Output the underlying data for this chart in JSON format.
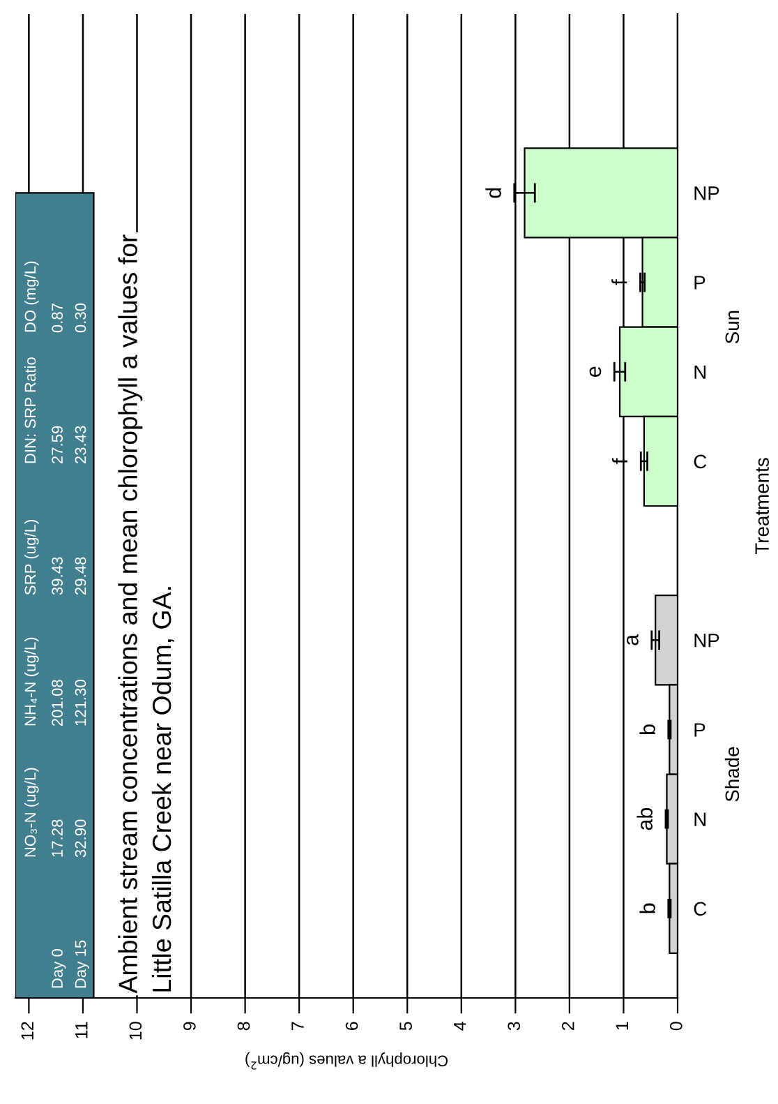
{
  "chart_data": {
    "type": "bar",
    "orientation": "horizontal",
    "title": "Ambient stream concentrations and mean chlorophyll a values for\nLittle Satilla Creek near Odum, GA.",
    "xlabel": "Chlorophyll a values (ug/cm$^{2}$)",
    "ylabel": "Treatments",
    "categories": [
      "NP",
      "P",
      "N",
      "C",
      null,
      "NP",
      "P",
      "N",
      "C"
    ],
    "values": [
      2.83,
      0.65,
      1.07,
      0.62,
      null,
      0.41,
      0.15,
      0.2,
      0.15
    ],
    "errors": [
      0.19,
      0.04,
      0.1,
      0.06,
      null,
      0.07,
      0.02,
      0.02,
      0.02
    ],
    "colors": [
      "#ccffcc",
      "#ccffcc",
      "#ccffcc",
      "#ccffcc",
      null,
      "#d3d3d3",
      "#d3d3d3",
      "#d3d3d3",
      "#d3d3d3"
    ],
    "value_labels": [
      "d",
      "f",
      "e",
      "f",
      null,
      "a",
      "b",
      "ab",
      "b"
    ],
    "xlim": [
      12.25,
      0
    ],
    "xticks": [
      0,
      1,
      2,
      3,
      4,
      5,
      6,
      7,
      8,
      9,
      10,
      11,
      12
    ],
    "grid": "x",
    "annotations": [
      "Sun",
      "Shade",
      "NO₃-N (ug/L)",
      "NH₄-N (ug/L)",
      "SRP (ug/L)",
      "DIN: SRP Ratio",
      "DO (mg/L)",
      "Day 0",
      "17.28",
      "201.08",
      "39.43",
      "27.59",
      "0.87",
      "Day 15",
      "32.90",
      "121.30",
      "29.48",
      "23.43",
      "0.30"
    ]
  }
}
